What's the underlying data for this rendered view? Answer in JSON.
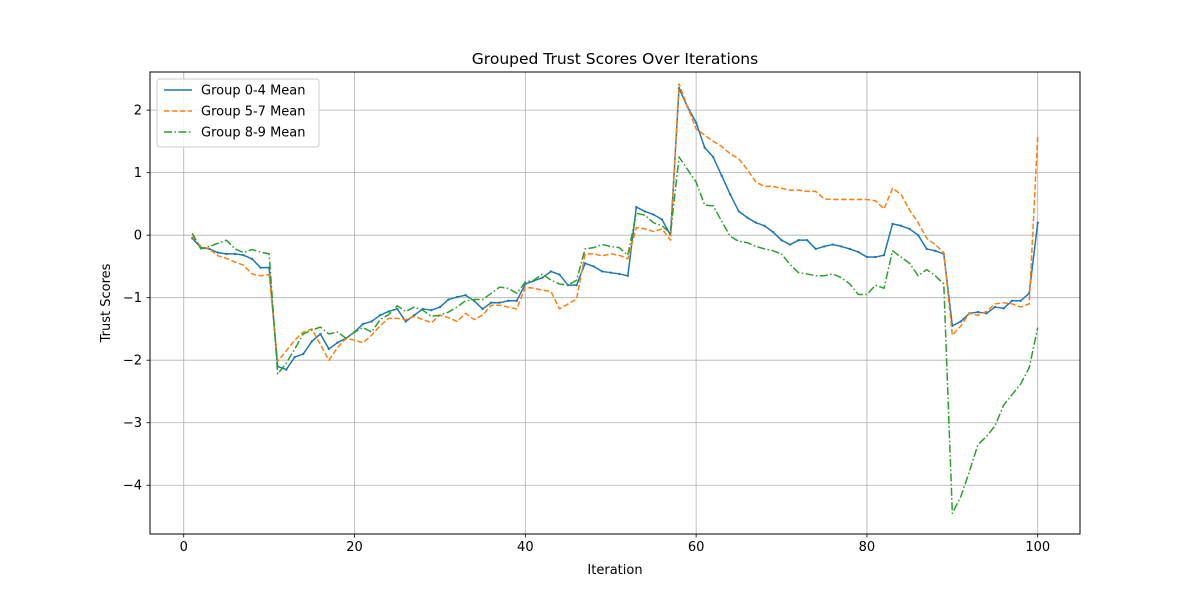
{
  "chart_data": {
    "type": "line",
    "title": "Grouped Trust Scores Over Iterations",
    "xlabel": "Iteration",
    "ylabel": "Trust Scores",
    "xlim": [
      -3.95,
      104.95
    ],
    "ylim": [
      -4.78,
      2.61
    ],
    "xticks": [
      0,
      20,
      40,
      60,
      80,
      100
    ],
    "yticks": [
      -4,
      -3,
      -2,
      -1,
      0,
      1,
      2
    ],
    "grid": true,
    "legend_position": "top-left",
    "series": [
      {
        "name": "Group 0-4 Mean",
        "color": "#1f77b4",
        "linestyle": "solid",
        "x": [
          1,
          2,
          3,
          4,
          5,
          6,
          7,
          8,
          9,
          10,
          11,
          12,
          13,
          14,
          15,
          16,
          17,
          18,
          19,
          20,
          21,
          22,
          23,
          24,
          25,
          26,
          27,
          28,
          29,
          30,
          31,
          32,
          33,
          34,
          35,
          36,
          37,
          38,
          39,
          40,
          41,
          42,
          43,
          44,
          45,
          46,
          47,
          48,
          49,
          50,
          51,
          52,
          53,
          54,
          55,
          56,
          57,
          58,
          59,
          60,
          61,
          62,
          63,
          64,
          65,
          66,
          67,
          68,
          69,
          70,
          71,
          72,
          73,
          74,
          75,
          76,
          77,
          78,
          79,
          80,
          81,
          82,
          83,
          84,
          85,
          86,
          87,
          88,
          89,
          90,
          91,
          92,
          93,
          94,
          95,
          96,
          97,
          98,
          99,
          100
        ],
        "values": [
          -0.05,
          -0.2,
          -0.22,
          -0.28,
          -0.3,
          -0.3,
          -0.32,
          -0.38,
          -0.52,
          -0.52,
          -2.1,
          -2.15,
          -1.95,
          -1.9,
          -1.7,
          -1.58,
          -1.82,
          -1.72,
          -1.65,
          -1.55,
          -1.42,
          -1.38,
          -1.28,
          -1.22,
          -1.18,
          -1.38,
          -1.28,
          -1.18,
          -1.2,
          -1.15,
          -1.03,
          -0.99,
          -0.96,
          -1.05,
          -1.18,
          -1.08,
          -1.08,
          -1.05,
          -1.05,
          -0.78,
          -0.73,
          -0.68,
          -0.58,
          -0.63,
          -0.8,
          -0.8,
          -0.45,
          -0.5,
          -0.58,
          -0.6,
          -0.62,
          -0.65,
          0.45,
          0.38,
          0.33,
          0.25,
          0.0,
          2.35,
          2.05,
          1.8,
          1.4,
          1.25,
          0.95,
          0.65,
          0.38,
          0.28,
          0.2,
          0.15,
          0.05,
          -0.08,
          -0.15,
          -0.08,
          -0.08,
          -0.22,
          -0.18,
          -0.15,
          -0.18,
          -0.22,
          -0.27,
          -0.35,
          -0.35,
          -0.32,
          0.18,
          0.15,
          0.1,
          0.0,
          -0.22,
          -0.25,
          -0.3,
          -1.45,
          -1.38,
          -1.25,
          -1.23,
          -1.25,
          -1.15,
          -1.17,
          -1.05,
          -1.05,
          -0.93,
          0.2
        ]
      },
      {
        "name": "Group 5-7 Mean",
        "color": "#ff7f0e",
        "linestyle": "dashed",
        "x": [
          1,
          2,
          3,
          4,
          5,
          6,
          7,
          8,
          9,
          10,
          11,
          12,
          13,
          14,
          15,
          16,
          17,
          18,
          19,
          20,
          21,
          22,
          23,
          24,
          25,
          26,
          27,
          28,
          29,
          30,
          31,
          32,
          33,
          34,
          35,
          36,
          37,
          38,
          39,
          40,
          41,
          42,
          43,
          44,
          45,
          46,
          47,
          48,
          49,
          50,
          51,
          52,
          53,
          54,
          55,
          56,
          57,
          58,
          59,
          60,
          61,
          62,
          63,
          64,
          65,
          66,
          67,
          68,
          69,
          70,
          71,
          72,
          73,
          74,
          75,
          76,
          77,
          78,
          79,
          80,
          81,
          82,
          83,
          84,
          85,
          86,
          87,
          88,
          89,
          90,
          91,
          92,
          93,
          94,
          95,
          96,
          97,
          98,
          99,
          100
        ],
        "values": [
          -0.02,
          -0.18,
          -0.22,
          -0.33,
          -0.37,
          -0.43,
          -0.48,
          -0.62,
          -0.65,
          -0.63,
          -2.02,
          -1.85,
          -1.68,
          -1.55,
          -1.5,
          -1.75,
          -2.0,
          -1.8,
          -1.65,
          -1.68,
          -1.72,
          -1.6,
          -1.45,
          -1.33,
          -1.33,
          -1.35,
          -1.3,
          -1.35,
          -1.4,
          -1.28,
          -1.32,
          -1.38,
          -1.25,
          -1.35,
          -1.28,
          -1.12,
          -1.12,
          -1.15,
          -1.18,
          -0.83,
          -0.85,
          -0.88,
          -0.9,
          -1.18,
          -1.1,
          -1.02,
          -0.3,
          -0.3,
          -0.33,
          -0.3,
          -0.32,
          -0.38,
          0.12,
          0.1,
          0.06,
          0.1,
          -0.08,
          2.42,
          2.05,
          1.7,
          1.6,
          1.5,
          1.42,
          1.3,
          1.22,
          1.05,
          0.85,
          0.78,
          0.78,
          0.75,
          0.72,
          0.72,
          0.7,
          0.7,
          0.58,
          0.57,
          0.57,
          0.57,
          0.57,
          0.57,
          0.55,
          0.42,
          0.75,
          0.65,
          0.4,
          0.2,
          -0.05,
          -0.15,
          -0.28,
          -1.6,
          -1.45,
          -1.25,
          -1.28,
          -1.22,
          -1.1,
          -1.08,
          -1.1,
          -1.15,
          -1.1,
          1.6
        ]
      },
      {
        "name": "Group 8-9 Mean",
        "color": "#2ca02c",
        "linestyle": "dashdot",
        "x": [
          1,
          2,
          3,
          4,
          5,
          6,
          7,
          8,
          9,
          10,
          11,
          12,
          13,
          14,
          15,
          16,
          17,
          18,
          19,
          20,
          21,
          22,
          23,
          24,
          25,
          26,
          27,
          28,
          29,
          30,
          31,
          32,
          33,
          34,
          35,
          36,
          37,
          38,
          39,
          40,
          41,
          42,
          43,
          44,
          45,
          46,
          47,
          48,
          49,
          50,
          51,
          52,
          53,
          54,
          55,
          56,
          57,
          58,
          59,
          60,
          61,
          62,
          63,
          64,
          65,
          66,
          67,
          68,
          69,
          70,
          71,
          72,
          73,
          74,
          75,
          76,
          77,
          78,
          79,
          80,
          81,
          82,
          83,
          84,
          85,
          86,
          87,
          88,
          89,
          90,
          91,
          92,
          93,
          94,
          95,
          96,
          97,
          98,
          99,
          100
        ],
        "values": [
          0.03,
          -0.22,
          -0.18,
          -0.13,
          -0.08,
          -0.22,
          -0.28,
          -0.23,
          -0.27,
          -0.3,
          -2.22,
          -2.05,
          -1.82,
          -1.58,
          -1.52,
          -1.47,
          -1.58,
          -1.55,
          -1.65,
          -1.55,
          -1.48,
          -1.55,
          -1.35,
          -1.27,
          -1.13,
          -1.22,
          -1.15,
          -1.2,
          -1.3,
          -1.28,
          -1.23,
          -1.15,
          -1.05,
          -1.03,
          -1.03,
          -0.93,
          -0.83,
          -0.85,
          -0.93,
          -0.75,
          -0.72,
          -0.62,
          -0.72,
          -0.78,
          -0.8,
          -0.72,
          -0.22,
          -0.2,
          -0.15,
          -0.18,
          -0.2,
          -0.32,
          0.35,
          0.32,
          0.2,
          0.15,
          0.03,
          1.25,
          1.05,
          0.85,
          0.48,
          0.47,
          0.22,
          -0.02,
          -0.1,
          -0.12,
          -0.18,
          -0.22,
          -0.25,
          -0.3,
          -0.47,
          -0.6,
          -0.62,
          -0.65,
          -0.65,
          -0.62,
          -0.68,
          -0.78,
          -0.95,
          -0.95,
          -0.8,
          -0.85,
          -0.25,
          -0.35,
          -0.45,
          -0.65,
          -0.55,
          -0.65,
          -0.78,
          -4.45,
          -4.18,
          -3.78,
          -3.35,
          -3.22,
          -3.05,
          -2.72,
          -2.55,
          -2.38,
          -2.12,
          -1.48
        ]
      }
    ]
  }
}
